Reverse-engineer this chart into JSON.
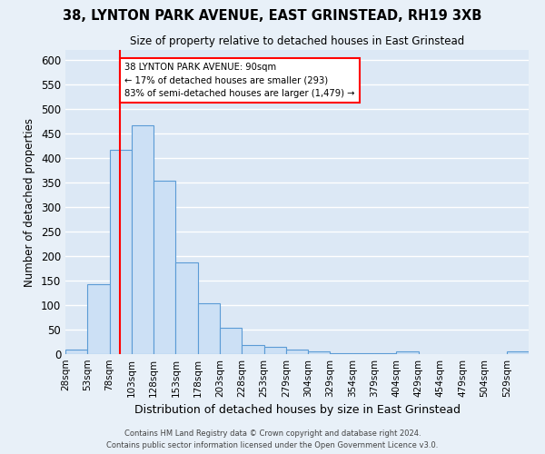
{
  "title": "38, LYNTON PARK AVENUE, EAST GRINSTEAD, RH19 3XB",
  "subtitle": "Size of property relative to detached houses in East Grinstead",
  "xlabel": "Distribution of detached houses by size in East Grinstead",
  "ylabel": "Number of detached properties",
  "bin_labels": [
    "28sqm",
    "53sqm",
    "78sqm",
    "103sqm",
    "128sqm",
    "153sqm",
    "178sqm",
    "203sqm",
    "228sqm",
    "253sqm",
    "279sqm",
    "304sqm",
    "329sqm",
    "354sqm",
    "379sqm",
    "404sqm",
    "429sqm",
    "454sqm",
    "479sqm",
    "504sqm",
    "529sqm"
  ],
  "bar_heights": [
    10,
    143,
    417,
    467,
    353,
    187,
    104,
    53,
    18,
    14,
    10,
    6,
    2,
    2,
    1,
    5,
    0,
    0,
    0,
    0,
    5
  ],
  "bar_color": "#cce0f5",
  "bar_edge_color": "#5b9bd5",
  "annotation_line1": "38 LYNTON PARK AVENUE: 90sqm",
  "annotation_line2": "← 17% of detached houses are smaller (293)",
  "annotation_line3": "83% of semi-detached houses are larger (1,479) →",
  "ylim": [
    0,
    620
  ],
  "background_color": "#e8f0f8",
  "plot_bg_color": "#dce8f5",
  "grid_color": "#ffffff",
  "footer_line1": "Contains HM Land Registry data © Crown copyright and database right 2024.",
  "footer_line2": "Contains public sector information licensed under the Open Government Licence v3.0."
}
